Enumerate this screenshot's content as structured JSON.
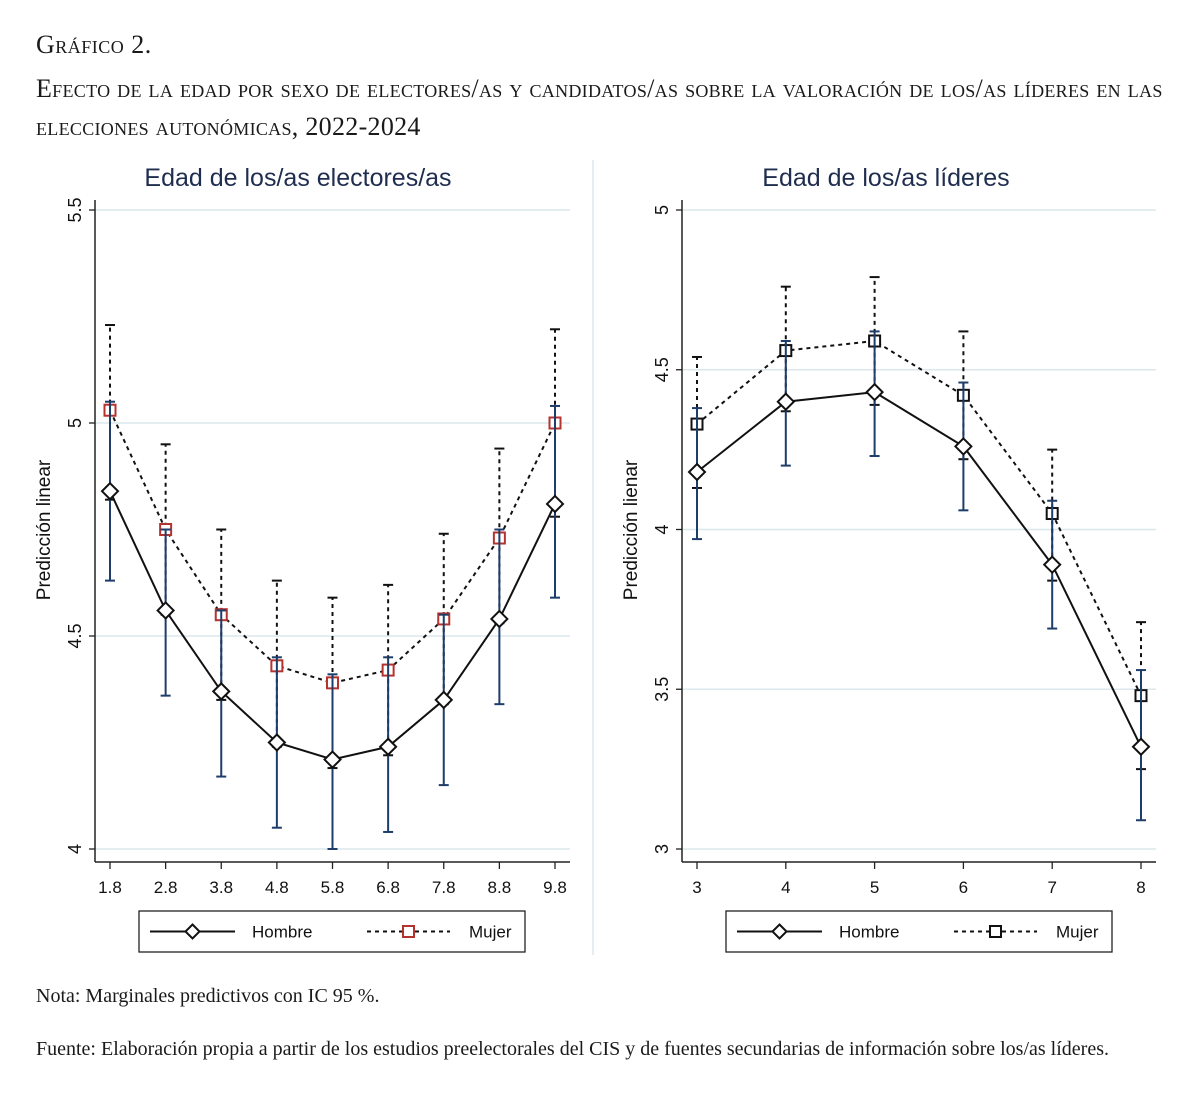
{
  "figure": {
    "label": "Gráfico 2.",
    "title": "Efecto de la edad por sexo de electores/as y candidatos/as sobre la valoración de los/as líderes en las elecciones autonómicas, 2022-2024",
    "note": "Nota: Marginales predictivos con IC 95 %.",
    "source": "Fuente: Elaboración propia a partir de los estudios preelectorales del CIS y de fuentes secundarias de información sobre los/as líderes."
  },
  "colors": {
    "title": "#1f2d4f",
    "error_bar": "#1e3d6b",
    "grid": "#dbe7ec",
    "mujer_marker_left": "#b5332e",
    "line": "#111111"
  },
  "chart_data": [
    {
      "type": "line",
      "title": "Edad de los/as electores/as",
      "xlabel": "",
      "ylabel": "Predicción linear",
      "categories": [
        "1.8",
        "2.8",
        "3.8",
        "4.8",
        "5.8",
        "6.8",
        "7.8",
        "8.8",
        "9.8"
      ],
      "ylim": [
        4,
        5.5
      ],
      "yticks": [
        "4",
        "4.5",
        "5",
        "5.5"
      ],
      "grid": true,
      "legend_position": "bottom",
      "series": [
        {
          "name": "Hombre",
          "style": "solid",
          "marker": "diamond",
          "values": [
            4.84,
            4.56,
            4.37,
            4.25,
            4.21,
            4.24,
            4.35,
            4.54,
            4.81
          ],
          "ci_low": [
            4.63,
            4.36,
            4.17,
            4.05,
            4.0,
            4.04,
            4.15,
            4.34,
            4.59
          ],
          "ci_high": [
            5.05,
            4.75,
            4.56,
            4.45,
            4.41,
            4.45,
            4.55,
            4.75,
            5.04
          ]
        },
        {
          "name": "Mujer",
          "style": "dashed",
          "marker": "square",
          "values": [
            5.03,
            4.75,
            4.55,
            4.43,
            4.39,
            4.42,
            4.54,
            4.73,
            5.0
          ],
          "ci_low": [
            4.82,
            4.55,
            4.35,
            4.24,
            4.19,
            4.22,
            4.34,
            4.53,
            4.78
          ],
          "ci_high": [
            5.23,
            4.95,
            4.75,
            4.63,
            4.59,
            4.62,
            4.74,
            4.94,
            5.22
          ]
        }
      ]
    },
    {
      "type": "line",
      "title": "Edad de los/as líderes",
      "xlabel": "",
      "ylabel": "Predicción lienar",
      "categories": [
        "3",
        "4",
        "5",
        "6",
        "7",
        "8"
      ],
      "ylim": [
        3,
        5
      ],
      "yticks": [
        "3",
        "3.5",
        "4",
        "4.5",
        "5"
      ],
      "grid": true,
      "legend_position": "bottom",
      "series": [
        {
          "name": "Hombre",
          "style": "solid",
          "marker": "diamond",
          "values": [
            4.18,
            4.4,
            4.43,
            4.26,
            3.89,
            3.32
          ],
          "ci_low": [
            3.97,
            4.2,
            4.23,
            4.06,
            3.69,
            3.09
          ],
          "ci_high": [
            4.38,
            4.59,
            4.62,
            4.46,
            4.09,
            3.56
          ]
        },
        {
          "name": "Mujer",
          "style": "dashed",
          "marker": "square",
          "values": [
            4.33,
            4.56,
            4.59,
            4.42,
            4.05,
            3.48
          ],
          "ci_low": [
            4.13,
            4.37,
            4.39,
            4.22,
            3.84,
            3.25
          ],
          "ci_high": [
            4.54,
            4.76,
            4.79,
            4.62,
            4.25,
            3.71
          ]
        }
      ]
    }
  ]
}
